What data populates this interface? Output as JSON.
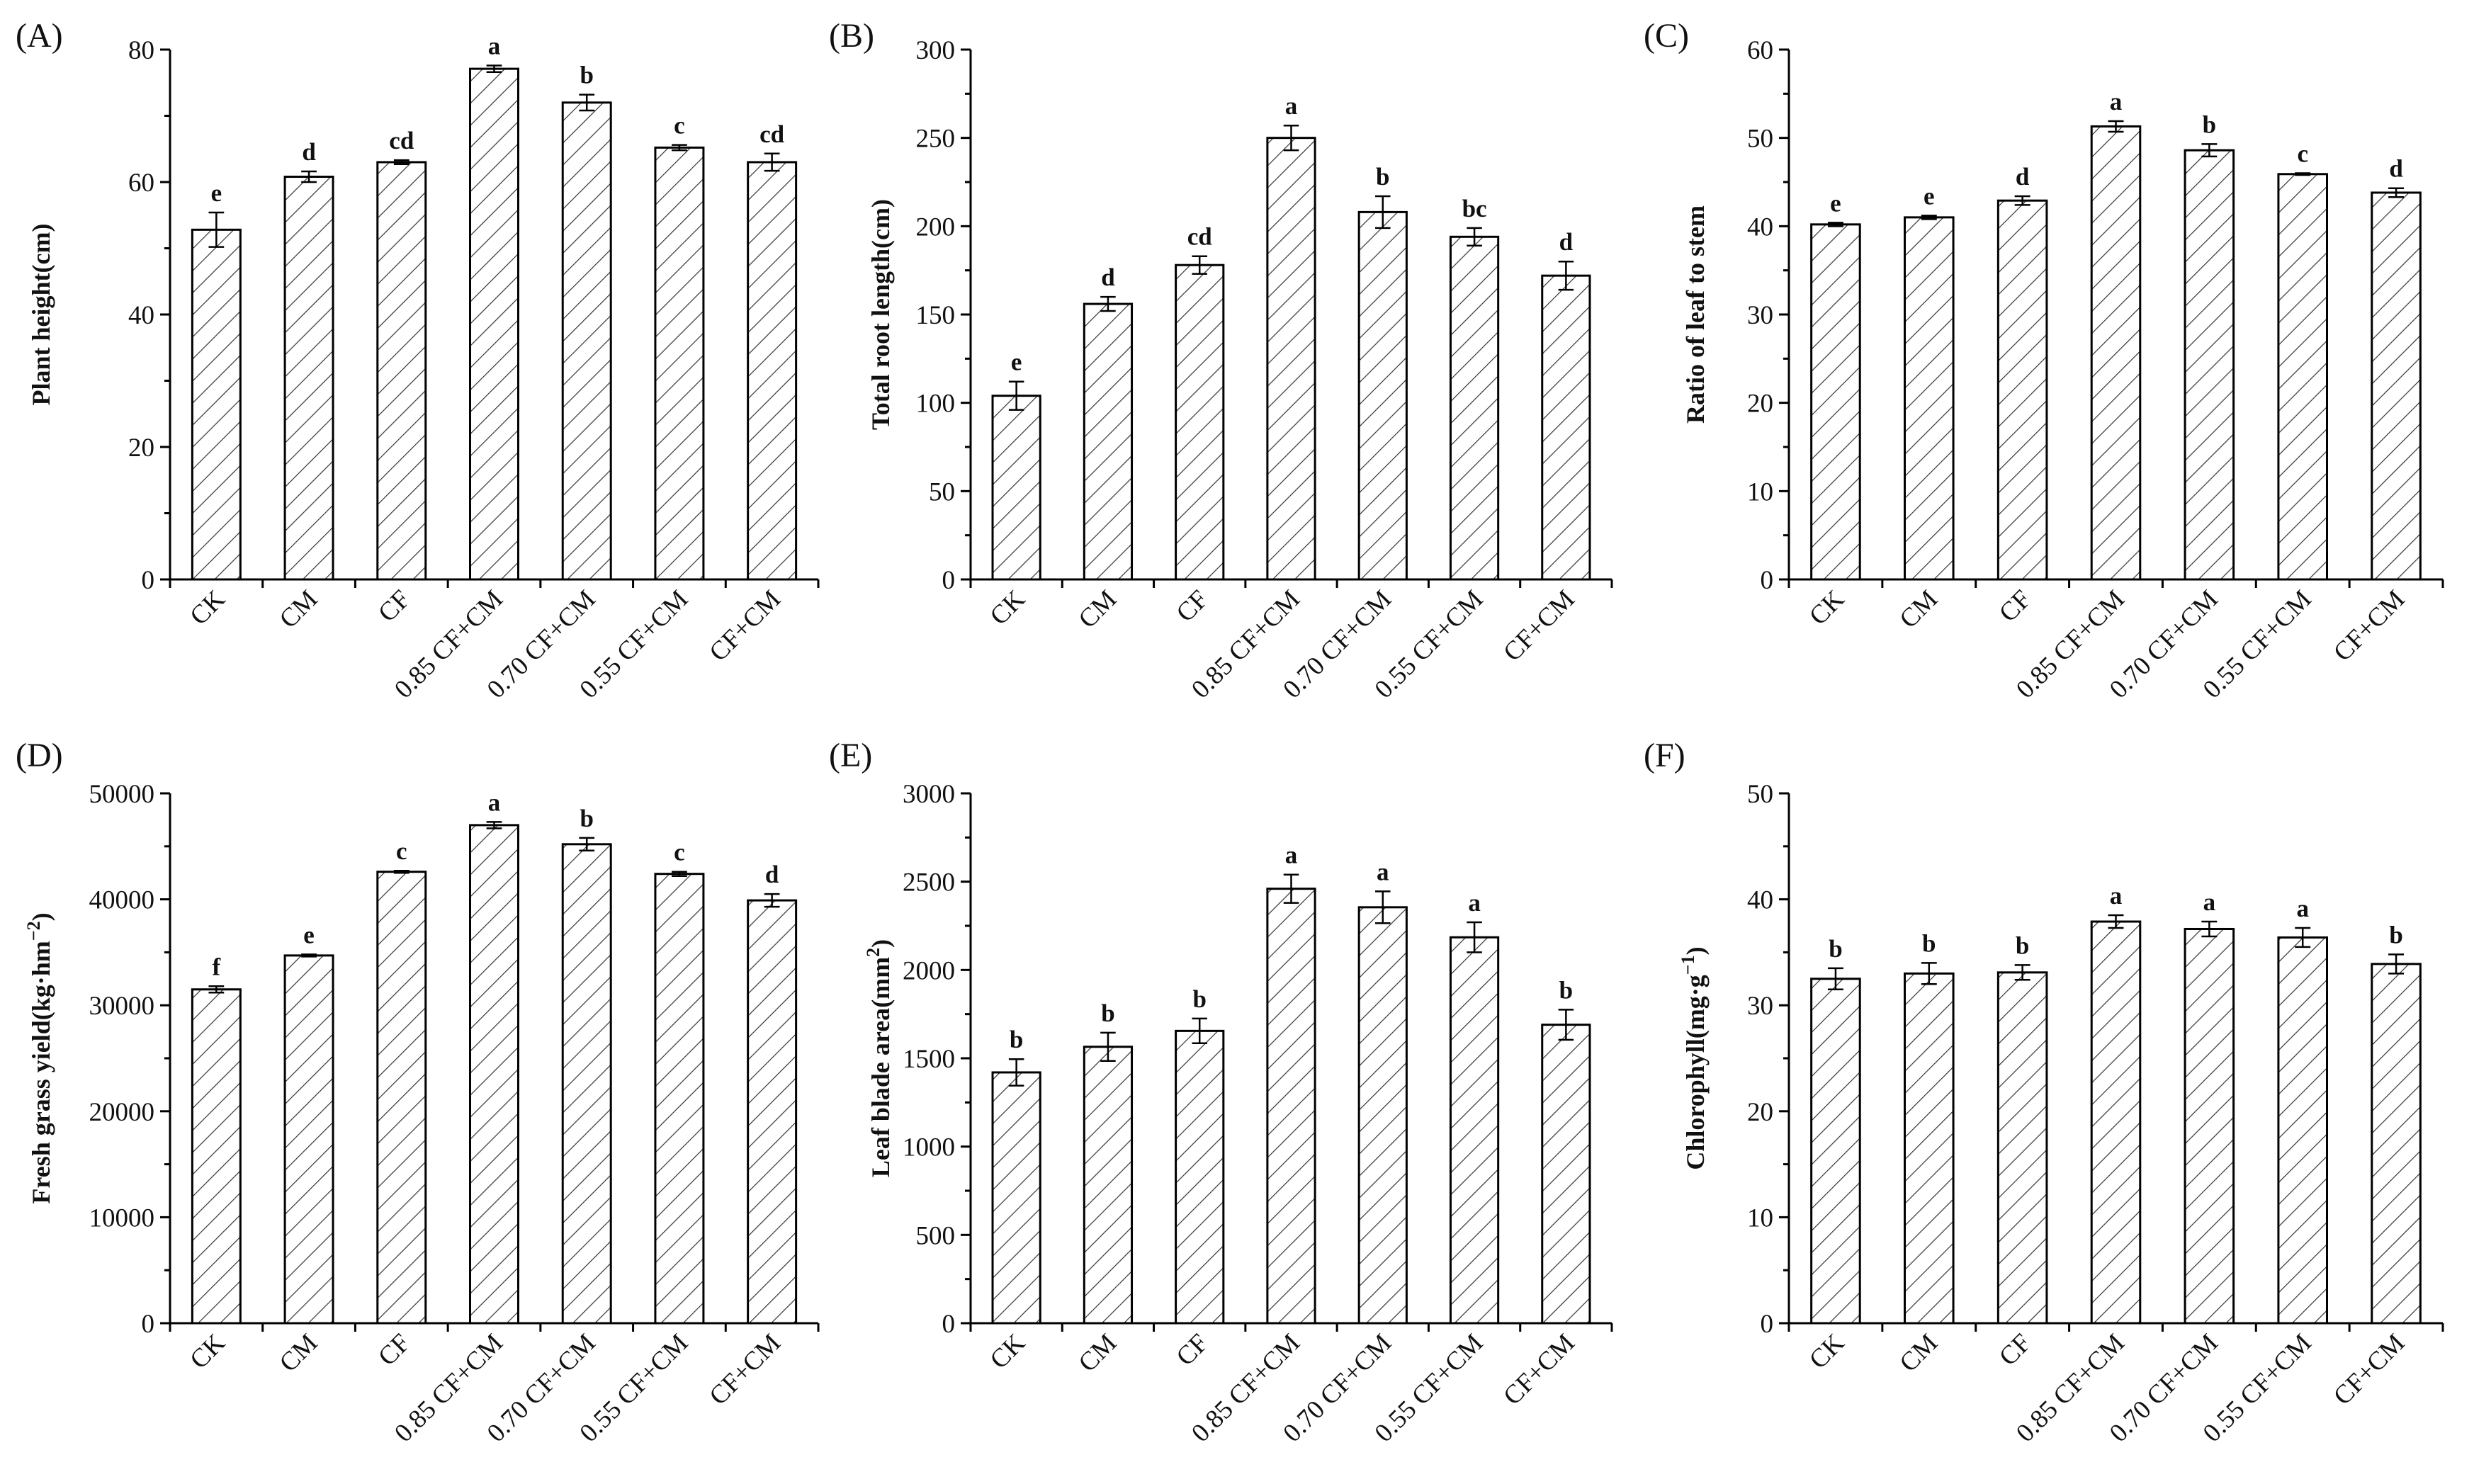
{
  "figure": {
    "colors": {
      "ink": "#000000",
      "hatch": "#333333",
      "background": "#ffffff"
    },
    "categories": [
      "CK",
      "CM",
      "CF",
      "0.85 CF+CM",
      "0.70 CF+CM",
      "0.55 CF+CM",
      "CF+CM"
    ]
  },
  "chart_data": [
    {
      "panel": "(A)",
      "type": "bar",
      "ylabel": "Plant height(cm)",
      "ylim": [
        0,
        80
      ],
      "yticks": [
        0,
        20,
        40,
        60,
        80
      ],
      "categories": [
        "CK",
        "CM",
        "CF",
        "0.85 CF+CM",
        "0.70 CF+CM",
        "0.55 CF+CM",
        "CF+CM"
      ],
      "values": [
        52.8,
        60.8,
        63.0,
        77.1,
        72.0,
        65.2,
        63.0
      ],
      "errors": [
        2.6,
        0.8,
        0.3,
        0.5,
        1.2,
        0.4,
        1.3
      ],
      "letters": [
        "e",
        "d",
        "cd",
        "a",
        "b",
        "c",
        "cd"
      ]
    },
    {
      "panel": "(B)",
      "type": "bar",
      "ylabel": "Total root length(cm)",
      "ylim": [
        0,
        300
      ],
      "yticks": [
        0,
        50,
        100,
        150,
        200,
        250,
        300
      ],
      "categories": [
        "CK",
        "CM",
        "CF",
        "0.85 CF+CM",
        "0.70 CF+CM",
        "0.55 CF+CM",
        "CF+CM"
      ],
      "values": [
        104,
        156,
        178,
        250,
        208,
        194,
        172
      ],
      "errors": [
        8,
        4,
        5,
        7,
        9,
        5,
        8
      ],
      "letters": [
        "e",
        "d",
        "cd",
        "a",
        "b",
        "bc",
        "d"
      ]
    },
    {
      "panel": "(C)",
      "type": "bar",
      "ylabel": "Ratio of leaf to stem",
      "ylim": [
        0,
        60
      ],
      "yticks": [
        0,
        10,
        20,
        30,
        40,
        50,
        60
      ],
      "categories": [
        "CK",
        "CM",
        "CF",
        "0.85 CF+CM",
        "0.70 CF+CM",
        "0.55 CF+CM",
        "CF+CM"
      ],
      "values": [
        40.2,
        41.0,
        42.9,
        51.3,
        48.6,
        45.9,
        43.8
      ],
      "errors": [
        0.2,
        0.2,
        0.5,
        0.6,
        0.7,
        0.1,
        0.5
      ],
      "letters": [
        "e",
        "e",
        "d",
        "a",
        "b",
        "c",
        "d"
      ]
    },
    {
      "panel": "(D)",
      "type": "bar",
      "ylabel": "Fresh grass yield(kg·hm",
      "ylabel_sup": "−2",
      "ylabel_end": ")",
      "ylim": [
        0,
        50000
      ],
      "yticks": [
        0,
        10000,
        20000,
        30000,
        40000,
        50000
      ],
      "categories": [
        "CK",
        "CM",
        "CF",
        "0.85 CF+CM",
        "0.70 CF+CM",
        "0.55 CF+CM",
        "CF+CM"
      ],
      "values": [
        31500,
        34700,
        42600,
        47000,
        45200,
        42400,
        39900
      ],
      "errors": [
        300,
        100,
        100,
        300,
        600,
        200,
        600
      ],
      "letters": [
        "f",
        "e",
        "c",
        "a",
        "b",
        "c",
        "d"
      ]
    },
    {
      "panel": "(E)",
      "type": "bar",
      "ylabel": "Leaf blade area(mm",
      "ylabel_sup": "2",
      "ylabel_end": ")",
      "ylim": [
        0,
        3000
      ],
      "yticks": [
        0,
        500,
        1000,
        1500,
        2000,
        2500,
        3000
      ],
      "categories": [
        "CK",
        "CM",
        "CF",
        "0.85 CF+CM",
        "0.70 CF+CM",
        "0.55 CF+CM",
        "CF+CM"
      ],
      "values": [
        1420,
        1565,
        1655,
        2460,
        2355,
        2185,
        1690
      ],
      "errors": [
        75,
        80,
        70,
        80,
        90,
        85,
        85
      ],
      "letters": [
        "b",
        "b",
        "b",
        "a",
        "a",
        "a",
        "b"
      ]
    },
    {
      "panel": "(F)",
      "type": "bar",
      "ylabel": "Chlorophyll(mg·g",
      "ylabel_sup": "−1",
      "ylabel_end": ")",
      "ylim": [
        0,
        50
      ],
      "yticks": [
        0,
        10,
        20,
        30,
        40,
        50
      ],
      "categories": [
        "CK",
        "CM",
        "CF",
        "0.85 CF+CM",
        "0.70 CF+CM",
        "0.55 CF+CM",
        "CF+CM"
      ],
      "values": [
        32.5,
        33.0,
        33.1,
        37.9,
        37.2,
        36.4,
        33.9
      ],
      "errors": [
        1.0,
        1.0,
        0.7,
        0.6,
        0.7,
        0.9,
        0.9
      ],
      "letters": [
        "b",
        "b",
        "b",
        "a",
        "a",
        "a",
        "b"
      ]
    }
  ]
}
